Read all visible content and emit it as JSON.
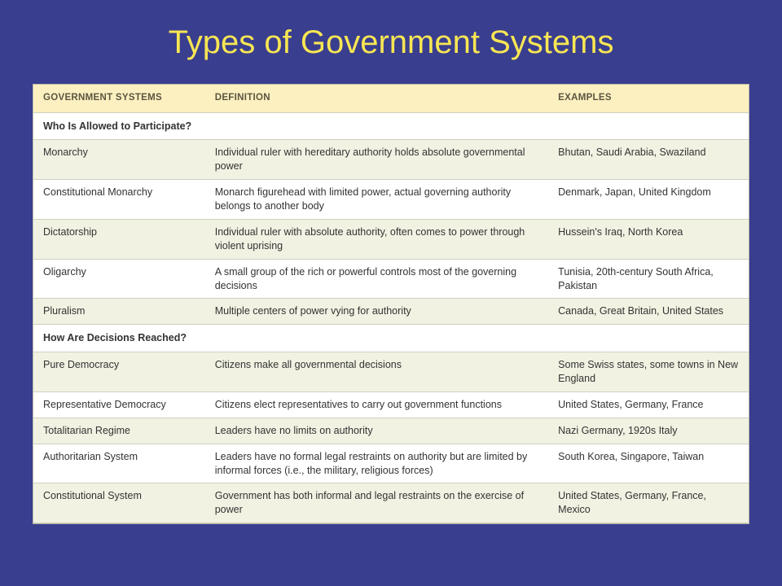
{
  "slide": {
    "title": "Types of Government Systems",
    "background_color": "#3a3e8f",
    "title_color": "#f7e653",
    "title_fontsize": 40
  },
  "table": {
    "header_bg": "#fcf0c0",
    "header_text_color": "#5a5540",
    "row_alt_bg": "#f1f2e2",
    "row_bg": "#ffffff",
    "border_color": "#d0d0c0",
    "font_size": 12.5,
    "columns": [
      {
        "key": "system",
        "label": "GOVERNMENT SYSTEMS",
        "width_pct": 24
      },
      {
        "key": "definition",
        "label": "DEFINITION",
        "width_pct": 48
      },
      {
        "key": "examples",
        "label": "EXAMPLES",
        "width_pct": 28
      }
    ],
    "sections": [
      {
        "heading": "Who Is Allowed to Participate?",
        "rows": [
          {
            "system": "Monarchy",
            "definition": "Individual ruler with hereditary authority holds absolute governmental power",
            "examples": "Bhutan, Saudi Arabia, Swaziland"
          },
          {
            "system": "Constitutional Monarchy",
            "definition": "Monarch figurehead with limited power, actual governing authority belongs to another body",
            "examples": "Denmark, Japan, United Kingdom"
          },
          {
            "system": "Dictatorship",
            "definition": "Individual ruler with absolute authority, often comes to power through violent uprising",
            "examples": "Hussein's Iraq, North Korea"
          },
          {
            "system": "Oligarchy",
            "definition": "A small group of the rich or powerful controls most of the governing decisions",
            "examples": "Tunisia, 20th-century South Africa, Pakistan"
          },
          {
            "system": "Pluralism",
            "definition": "Multiple centers of power vying for authority",
            "examples": "Canada, Great Britain, United States"
          }
        ]
      },
      {
        "heading": "How Are Decisions Reached?",
        "rows": [
          {
            "system": "Pure Democracy",
            "definition": "Citizens make all governmental decisions",
            "examples": "Some Swiss states, some towns in New England"
          },
          {
            "system": "Representative Democracy",
            "definition": "Citizens elect representatives to carry out government functions",
            "examples": "United States, Germany, France"
          },
          {
            "system": "Totalitarian Regime",
            "definition": "Leaders have no limits on authority",
            "examples": "Nazi Germany, 1920s Italy"
          },
          {
            "system": "Authoritarian System",
            "definition": "Leaders have no formal legal restraints on authority but are limited by informal forces (i.e., the military, religious forces)",
            "examples": "South Korea, Singapore, Taiwan"
          },
          {
            "system": "Constitutional System",
            "definition": "Government has both informal and legal restraints on the exercise of power",
            "examples": "United States, Germany, France, Mexico"
          }
        ]
      }
    ]
  }
}
